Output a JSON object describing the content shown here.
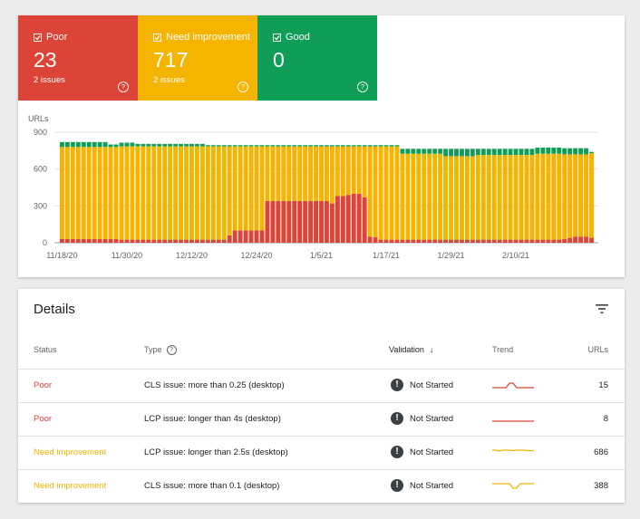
{
  "tiles": {
    "poor": {
      "label": "Poor",
      "count": "23",
      "issues": "2 issues",
      "color": "#db4437"
    },
    "need_improvement": {
      "label": "Need improvement",
      "count": "717",
      "issues": "2 issues",
      "color": "#f4b400"
    },
    "good": {
      "label": "Good",
      "count": "0",
      "issues": "",
      "color": "#0f9d58"
    }
  },
  "chart_data": {
    "type": "bar",
    "stacked": true,
    "ylabel": "URLs",
    "ylim": [
      0,
      900
    ],
    "yticks": [
      0,
      300,
      600,
      900
    ],
    "xticks": [
      "11/18/20",
      "11/30/20",
      "12/12/20",
      "12/24/20",
      "1/5/21",
      "1/17/21",
      "1/29/21",
      "2/10/21"
    ],
    "grid": true,
    "series": [
      {
        "name": "Poor",
        "color": "#db4437",
        "values": [
          30,
          30,
          30,
          30,
          30,
          30,
          30,
          30,
          30,
          30,
          30,
          25,
          25,
          25,
          25,
          25,
          25,
          25,
          25,
          25,
          25,
          25,
          25,
          25,
          25,
          25,
          25,
          25,
          25,
          25,
          25,
          60,
          100,
          100,
          100,
          100,
          100,
          100,
          340,
          340,
          340,
          340,
          340,
          340,
          340,
          340,
          340,
          340,
          340,
          340,
          320,
          380,
          380,
          390,
          400,
          400,
          370,
          50,
          45,
          25,
          25,
          25,
          25,
          25,
          25,
          25,
          25,
          25,
          25,
          25,
          25,
          25,
          25,
          25,
          25,
          25,
          25,
          25,
          25,
          25,
          25,
          25,
          25,
          25,
          25,
          25,
          25,
          25,
          25,
          25,
          25,
          25,
          25,
          30,
          40,
          50,
          50,
          50,
          40
        ]
      },
      {
        "name": "Need improvement",
        "color": "#f4b400",
        "values": [
          750,
          750,
          750,
          750,
          750,
          750,
          750,
          750,
          750,
          750,
          750,
          760,
          760,
          760,
          760,
          760,
          760,
          760,
          760,
          760,
          760,
          760,
          760,
          760,
          760,
          760,
          760,
          760,
          760,
          760,
          760,
          725,
          685,
          685,
          685,
          685,
          685,
          685,
          445,
          445,
          445,
          445,
          445,
          445,
          445,
          445,
          445,
          445,
          445,
          445,
          465,
          405,
          405,
          395,
          385,
          385,
          415,
          735,
          740,
          760,
          760,
          760,
          760,
          700,
          700,
          700,
          700,
          700,
          700,
          700,
          700,
          680,
          680,
          680,
          680,
          680,
          680,
          690,
          690,
          690,
          690,
          690,
          690,
          690,
          690,
          690,
          690,
          690,
          700,
          700,
          700,
          700,
          700,
          690,
          680,
          670,
          670,
          670,
          690
        ]
      },
      {
        "name": "Good",
        "color": "#0f9d58",
        "values": [
          40,
          40,
          40,
          40,
          40,
          40,
          40,
          40,
          40,
          20,
          20,
          30,
          30,
          30,
          20,
          20,
          20,
          20,
          20,
          20,
          20,
          20,
          20,
          20,
          20,
          20,
          20,
          10,
          10,
          10,
          10,
          10,
          10,
          10,
          10,
          10,
          10,
          10,
          10,
          10,
          10,
          10,
          10,
          10,
          10,
          10,
          10,
          10,
          10,
          10,
          10,
          10,
          10,
          10,
          10,
          10,
          10,
          10,
          10,
          10,
          10,
          10,
          10,
          40,
          40,
          40,
          40,
          40,
          40,
          40,
          40,
          60,
          60,
          60,
          60,
          60,
          60,
          50,
          50,
          50,
          50,
          50,
          50,
          50,
          50,
          50,
          50,
          50,
          50,
          50,
          50,
          50,
          50,
          50,
          50,
          50,
          50,
          50,
          10
        ]
      }
    ]
  },
  "details": {
    "title": "Details",
    "headers": {
      "status": "Status",
      "type": "Type",
      "validation": "Validation",
      "trend": "Trend",
      "urls": "URLs"
    },
    "rows": [
      {
        "status": "Poor",
        "status_kind": "poor",
        "type": "CLS issue: more than 0.25 (desktop)",
        "validation": "Not Started",
        "urls": "15",
        "trend_color": "#db4437",
        "trend": [
          0,
          0,
          0,
          0,
          0,
          1,
          1,
          0,
          0,
          0,
          0,
          0,
          0
        ]
      },
      {
        "status": "Poor",
        "status_kind": "poor",
        "type": "LCP issue: longer than 4s (desktop)",
        "validation": "Not Started",
        "urls": "8",
        "trend_color": "#db4437",
        "trend": [
          0,
          0,
          0,
          0,
          0,
          0,
          0,
          0,
          0,
          0,
          0,
          0,
          0
        ]
      },
      {
        "status": "Need improvement",
        "status_kind": "ni",
        "type": "LCP issue: longer than 2.5s (desktop)",
        "validation": "Not Started",
        "urls": "686",
        "trend_color": "#f4b400",
        "trend": [
          1,
          1,
          0.8,
          1,
          1,
          1,
          0.9,
          1,
          1,
          1,
          0.9,
          0.9,
          0.9
        ]
      },
      {
        "status": "Need improvement",
        "status_kind": "ni",
        "type": "CLS issue: more than 0.1 (desktop)",
        "validation": "Not Started",
        "urls": "388",
        "trend_color": "#f4b400",
        "trend": [
          1,
          1,
          1,
          1,
          1,
          1,
          0,
          0,
          1,
          1,
          1,
          1,
          1
        ]
      }
    ]
  },
  "icons": {
    "checkbox": "checkbox-checked-icon",
    "help": "help-icon",
    "filter": "filter-icon",
    "sort": "arrow-down-icon",
    "validation": "exclamation-icon"
  }
}
